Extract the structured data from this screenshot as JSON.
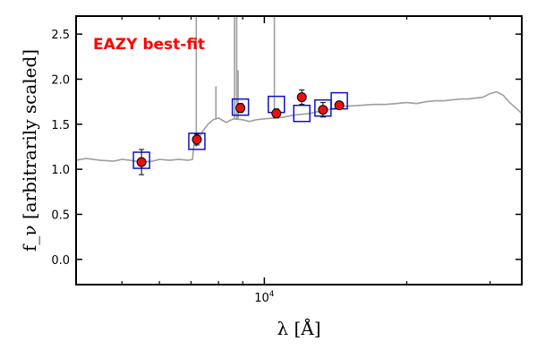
{
  "chart_data": {
    "type": "scatter",
    "annotation": "EAZY best-fit",
    "xlabel": "λ [Å]",
    "ylabel": "f_ν [arbitrarily scaled]",
    "xscale": "log",
    "xlim": [
      4000,
      35000
    ],
    "ylim": [
      -0.28,
      2.7
    ],
    "x_tick_labels": [
      {
        "value": 10000,
        "label": "10^4"
      }
    ],
    "y_ticks": [
      0.0,
      0.5,
      1.0,
      1.5,
      2.0,
      2.5
    ],
    "y_tick_labels": [
      "0.0",
      "0.5",
      "1.0",
      "1.5",
      "2.0",
      "2.5"
    ],
    "grid": false,
    "colors": {
      "observed_fill": "#e8110f",
      "observed_edge": "#000000",
      "model_box": "#1010cc",
      "template": "#9e9e9e",
      "annotation": "#ff0000"
    },
    "series": [
      {
        "role": "observed-photometry",
        "x": [
          5500,
          7200,
          8900,
          10600,
          12000,
          13300,
          14400
        ],
        "y": [
          1.08,
          1.33,
          1.68,
          1.62,
          1.8,
          1.66,
          1.71
        ],
        "yerr": [
          0.14,
          0.06,
          0.05,
          0.05,
          0.08,
          0.08,
          0.04
        ]
      },
      {
        "role": "model-photometry",
        "x": [
          5500,
          7200,
          8900,
          10600,
          12000,
          13300,
          14400
        ],
        "y": [
          1.1,
          1.31,
          1.69,
          1.72,
          1.62,
          1.68,
          1.76
        ]
      },
      {
        "role": "template-spectrum",
        "x": [
          4000,
          4200,
          4500,
          4800,
          5000,
          5200,
          5500,
          5800,
          6000,
          6300,
          6600,
          6900,
          7050,
          7100,
          7200,
          7400,
          7600,
          7800,
          8000,
          8300,
          8600,
          9000,
          9300,
          9600,
          10000,
          10500,
          11000,
          11500,
          12000,
          12500,
          13000,
          13500,
          14000,
          14500,
          15000,
          16000,
          17000,
          18000,
          19000,
          20000,
          21000,
          22000,
          23000,
          24000,
          25000,
          26000,
          27000,
          28000,
          29000,
          30000,
          31000,
          32000,
          33000,
          34000,
          35000
        ],
        "y": [
          1.1,
          1.12,
          1.1,
          1.09,
          1.11,
          1.1,
          1.08,
          1.09,
          1.11,
          1.1,
          1.11,
          1.1,
          1.11,
          1.28,
          1.3,
          1.42,
          1.5,
          1.55,
          1.57,
          1.52,
          1.56,
          1.55,
          1.53,
          1.55,
          1.56,
          1.57,
          1.58,
          1.6,
          1.61,
          1.62,
          1.64,
          1.66,
          1.67,
          1.7,
          1.7,
          1.71,
          1.72,
          1.72,
          1.73,
          1.74,
          1.73,
          1.75,
          1.76,
          1.76,
          1.77,
          1.78,
          1.78,
          1.79,
          1.8,
          1.84,
          1.86,
          1.82,
          1.74,
          1.68,
          1.62
        ]
      }
    ]
  }
}
